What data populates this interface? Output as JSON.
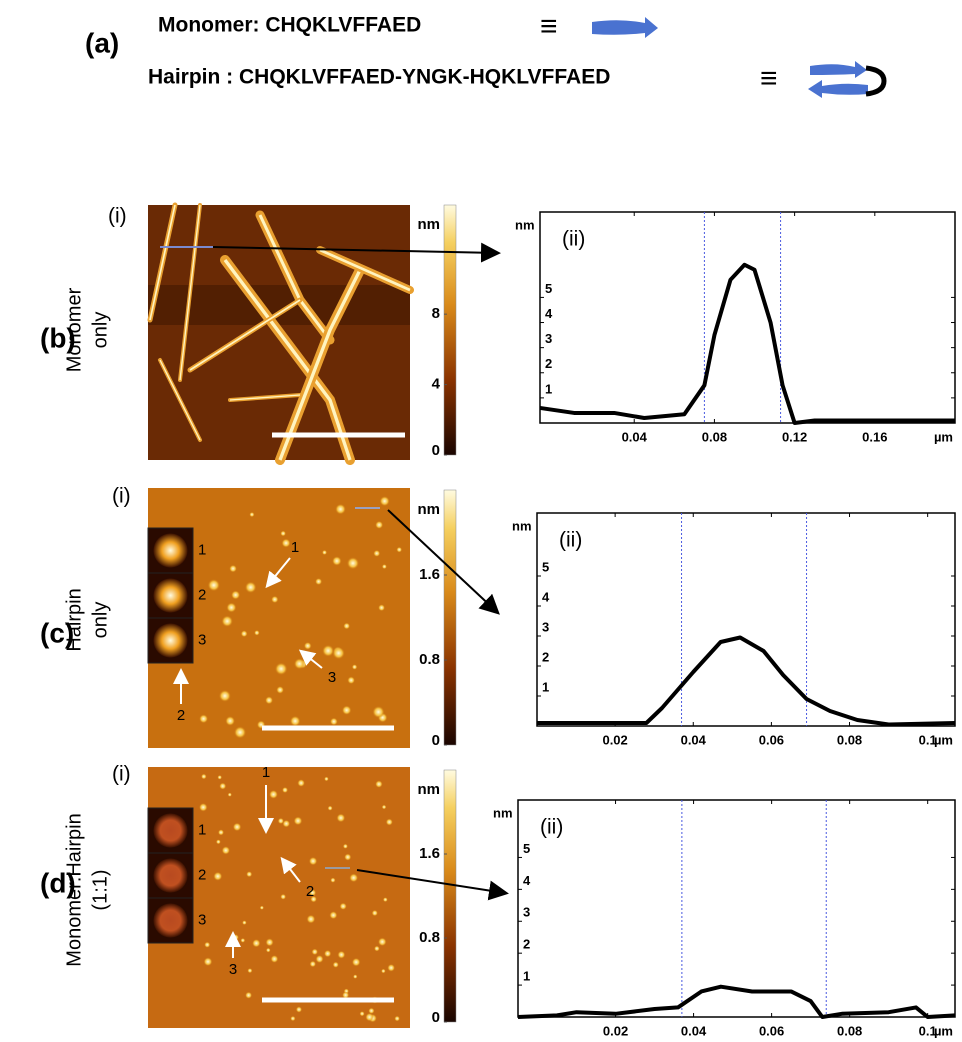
{
  "header": {
    "label": "(a)",
    "monomer": "Monomer: CHQKLVFFAED",
    "hairpin": "Hairpin : CHQKLVFFAED-YNGK-HQKLVFFAED",
    "equiv": "≡"
  },
  "panels": [
    {
      "label": "(b)",
      "sample": [
        "Monomer",
        "only"
      ],
      "image": {
        "label": "(i)",
        "colorbar": {
          "unit": "nm",
          "clim": [
            0,
            14.2
          ],
          "ticks": [
            8,
            4,
            0
          ]
        },
        "insets": [],
        "pointers": []
      },
      "profile": {
        "type": "line",
        "label": "(ii)",
        "y_unit": "nm",
        "x_unit": "µm",
        "xlim": [
          -0.007,
          0.2
        ],
        "ylim": [
          0,
          8.4
        ],
        "xticks": [
          0.04,
          0.08,
          0.12,
          0.16
        ],
        "yticks": [
          1,
          2,
          3,
          4,
          5
        ],
        "x": [
          -0.007,
          0.01,
          0.03,
          0.045,
          0.065,
          0.075,
          0.08,
          0.088,
          0.095,
          0.1,
          0.108,
          0.114,
          0.12,
          0.13,
          0.2
        ],
        "y": [
          0.6,
          0.4,
          0.4,
          0.2,
          0.35,
          1.5,
          3.5,
          5.7,
          6.3,
          6.1,
          4,
          1.5,
          0,
          0.1,
          0.1
        ],
        "markers": [
          0.075,
          0.113
        ]
      }
    },
    {
      "label": "(c)",
      "sample": [
        "Hairpin",
        "only"
      ],
      "image": {
        "label": "(i)",
        "colorbar": {
          "unit": "nm",
          "clim": [
            0,
            2.4
          ],
          "ticks": [
            1.6,
            0.8,
            0
          ]
        },
        "insets": [
          "1",
          "2",
          "3"
        ],
        "pointers": [
          "1",
          "2",
          "3"
        ]
      },
      "profile": {
        "type": "line",
        "label": "(ii)",
        "y_unit": "nm",
        "x_unit": "µm",
        "xlim": [
          0,
          0.107
        ],
        "ylim": [
          0,
          7.1
        ],
        "xticks": [
          0.02,
          0.04,
          0.06,
          0.08,
          0.1
        ],
        "yticks": [
          1,
          2,
          3,
          4,
          5
        ],
        "x": [
          0,
          0.028,
          0.032,
          0.04,
          0.047,
          0.052,
          0.058,
          0.063,
          0.069,
          0.075,
          0.082,
          0.09,
          0.107
        ],
        "y": [
          0.1,
          0.1,
          0.6,
          1.8,
          2.8,
          2.95,
          2.5,
          1.7,
          0.9,
          0.5,
          0.2,
          0.05,
          0.1
        ],
        "markers": [
          0.037,
          0.069
        ]
      }
    },
    {
      "label": "(d)",
      "sample": [
        "Monomer:Hairpin",
        "(1:1)"
      ],
      "image": {
        "label": "(i)",
        "colorbar": {
          "unit": "nm",
          "clim": [
            0,
            2.4
          ],
          "ticks": [
            1.6,
            0.8,
            0
          ]
        },
        "insets": [
          "1",
          "2",
          "3"
        ],
        "pointers": [
          "1",
          "2",
          "3"
        ]
      },
      "profile": {
        "type": "line",
        "label": "(ii)",
        "y_unit": "nm",
        "x_unit": "µm",
        "xlim": [
          -0.005,
          0.107
        ],
        "ylim": [
          0,
          6.8
        ],
        "xticks": [
          0.02,
          0.04,
          0.06,
          0.08,
          0.1
        ],
        "yticks": [
          1,
          2,
          3,
          4,
          5
        ],
        "x": [
          -0.005,
          0.005,
          0.01,
          0.02,
          0.03,
          0.036,
          0.042,
          0.047,
          0.055,
          0.065,
          0.07,
          0.073,
          0.078,
          0.09,
          0.097,
          0.1,
          0.107
        ],
        "y": [
          0,
          0.05,
          0.15,
          0.1,
          0.25,
          0.3,
          0.8,
          0.95,
          0.8,
          0.8,
          0.5,
          0,
          0.1,
          0.15,
          0.3,
          0,
          0.05
        ],
        "markers": [
          0.037,
          0.074
        ]
      }
    }
  ]
}
